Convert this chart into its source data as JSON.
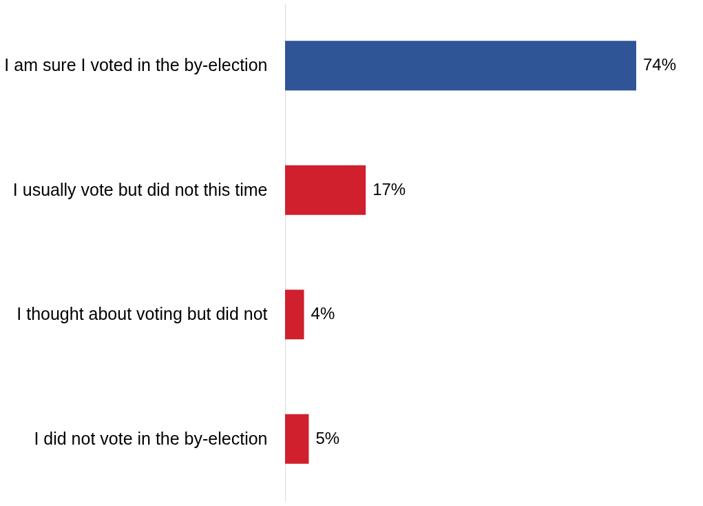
{
  "chart_data": {
    "type": "bar",
    "orientation": "horizontal",
    "categories": [
      "I am sure I voted in the by-election",
      "I usually vote but did not this time",
      "I thought about voting but did not",
      "I did not vote in the by-election"
    ],
    "values": [
      74,
      17,
      4,
      5
    ],
    "colors": [
      "#2f5597",
      "#d0202e",
      "#d0202e",
      "#d0202e"
    ],
    "value_labels": [
      "74%",
      "17%",
      "4%",
      "5%"
    ]
  }
}
